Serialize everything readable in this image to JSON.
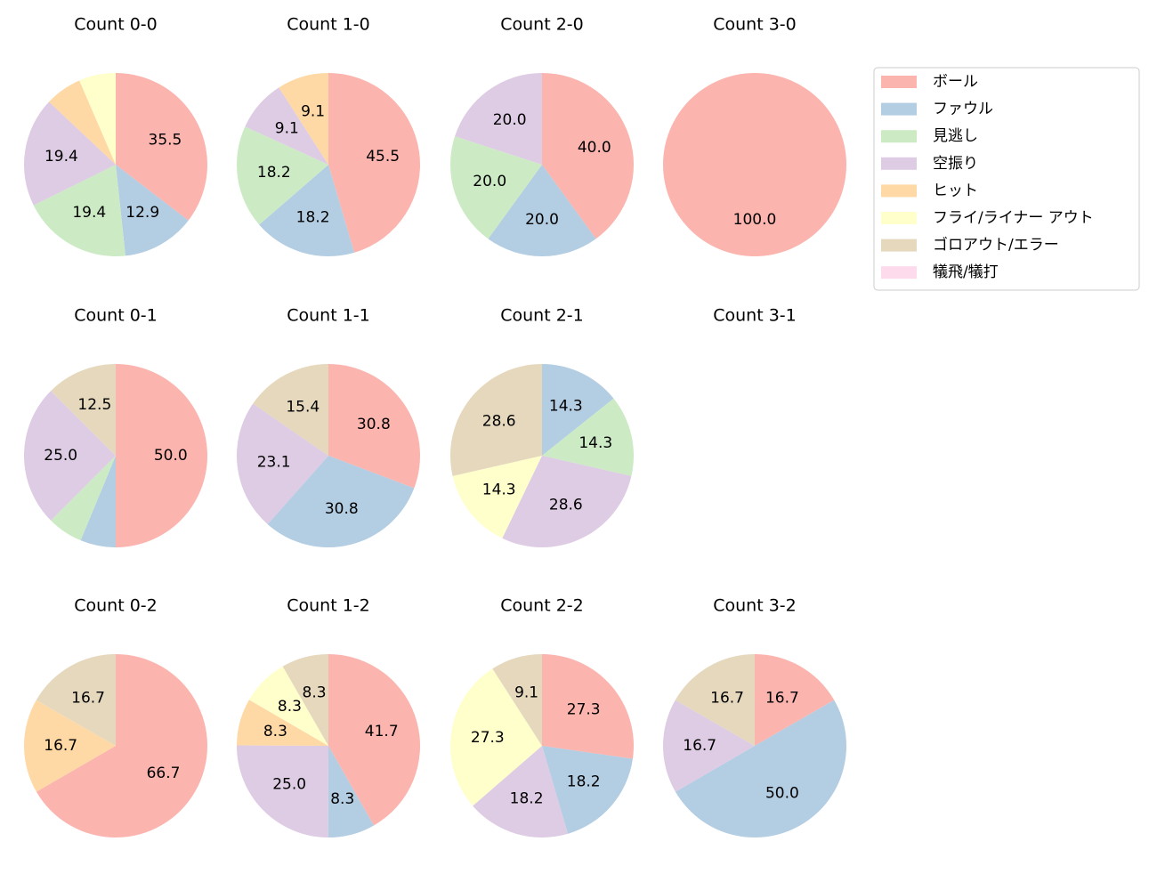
{
  "legend": {
    "labels": [
      "ボール",
      "ファウル",
      "見逃し",
      "空振り",
      "ヒット",
      "フライ/ライナー アウト",
      "ゴロアウト/エラー",
      "犠飛/犠打"
    ],
    "colors": [
      "#fbb4ae",
      "#b3cde3",
      "#ccebc5",
      "#decbe4",
      "#fed9a6",
      "#ffffcc",
      "#e5d8bd",
      "#fddaec"
    ]
  },
  "chart_data": [
    {
      "type": "pie",
      "title": "Count 0-0",
      "categories": [
        "ボール",
        "ファウル",
        "見逃し",
        "空振り",
        "ヒット",
        "フライ/ライナー アウト"
      ],
      "values": [
        35.5,
        12.9,
        19.4,
        19.4,
        6.5,
        6.5
      ],
      "value_labels": [
        "35.5",
        "12.9",
        "19.4",
        "19.4",
        null,
        null
      ]
    },
    {
      "type": "pie",
      "title": "Count 1-0",
      "categories": [
        "ボール",
        "ファウル",
        "見逃し",
        "空振り",
        "ヒット"
      ],
      "values": [
        45.5,
        18.2,
        18.2,
        9.1,
        9.1
      ],
      "value_labels": [
        "45.5",
        "18.2",
        "18.2",
        "9.1",
        "9.1"
      ]
    },
    {
      "type": "pie",
      "title": "Count 2-0",
      "categories": [
        "ボール",
        "ファウル",
        "見逃し",
        "空振り"
      ],
      "values": [
        40,
        20,
        20,
        20
      ],
      "value_labels": [
        "40.0",
        "20.0",
        "20.0",
        "20.0"
      ]
    },
    {
      "type": "pie",
      "title": "Count 3-0",
      "categories": [
        "ボール"
      ],
      "values": [
        100
      ],
      "value_labels": [
        "100.0"
      ]
    },
    {
      "type": "pie",
      "title": "Count 0-1",
      "categories": [
        "ボール",
        "ファウル",
        "見逃し",
        "空振り",
        "ゴロアウト/エラー"
      ],
      "values": [
        50,
        6.25,
        6.25,
        25,
        12.5
      ],
      "value_labels": [
        "50.0",
        null,
        null,
        "25.0",
        "12.5"
      ]
    },
    {
      "type": "pie",
      "title": "Count 1-1",
      "categories": [
        "ボール",
        "ファウル",
        "空振り",
        "ゴロアウト/エラー"
      ],
      "values": [
        30.8,
        30.8,
        23.1,
        15.4
      ],
      "value_labels": [
        "30.8",
        "30.8",
        "23.1",
        "15.4"
      ]
    },
    {
      "type": "pie",
      "title": "Count 2-1",
      "categories": [
        "ファウル",
        "見逃し",
        "空振り",
        "フライ/ライナー アウト",
        "ゴロアウト/エラー"
      ],
      "values": [
        14.3,
        14.3,
        28.6,
        14.3,
        28.6
      ],
      "value_labels": [
        "14.3",
        "14.3",
        "28.6",
        "14.3",
        "28.6"
      ]
    },
    {
      "type": "pie",
      "title": "Count 3-1",
      "categories": [],
      "values": [],
      "value_labels": []
    },
    {
      "type": "pie",
      "title": "Count 0-2",
      "categories": [
        "ボール",
        "ヒット",
        "ゴロアウト/エラー"
      ],
      "values": [
        66.7,
        16.7,
        16.7
      ],
      "value_labels": [
        "66.7",
        "16.7",
        "16.7"
      ]
    },
    {
      "type": "pie",
      "title": "Count 1-2",
      "categories": [
        "ボール",
        "ファウル",
        "空振り",
        "ヒット",
        "フライ/ライナー アウト",
        "ゴロアウト/エラー"
      ],
      "values": [
        41.7,
        8.3,
        25,
        8.3,
        8.3,
        8.3
      ],
      "value_labels": [
        "41.7",
        "8.3",
        "25.0",
        "8.3",
        "8.3",
        "8.3"
      ]
    },
    {
      "type": "pie",
      "title": "Count 2-2",
      "categories": [
        "ボール",
        "ファウル",
        "空振り",
        "フライ/ライナー アウト",
        "ゴロアウト/エラー"
      ],
      "values": [
        27.3,
        18.2,
        18.2,
        27.3,
        9.1
      ],
      "value_labels": [
        "27.3",
        "18.2",
        "18.2",
        "27.3",
        "9.1"
      ]
    },
    {
      "type": "pie",
      "title": "Count 3-2",
      "categories": [
        "ボール",
        "ファウル",
        "空振り",
        "ゴロアウト/エラー"
      ],
      "values": [
        16.7,
        50,
        16.7,
        16.7
      ],
      "value_labels": [
        "16.7",
        "50.0",
        "16.7",
        "16.7"
      ]
    }
  ]
}
